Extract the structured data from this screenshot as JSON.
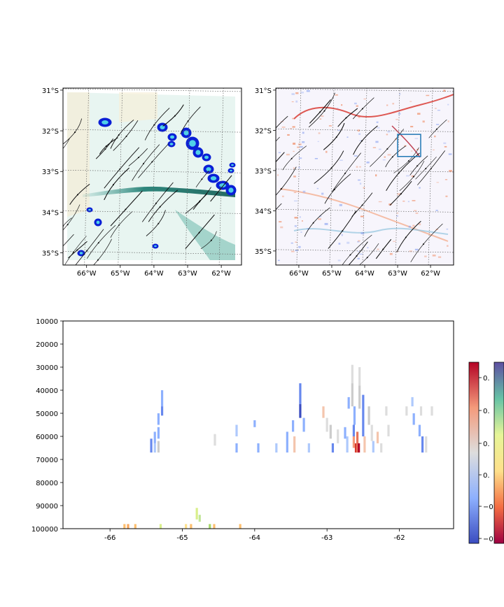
{
  "chart_data": [
    {
      "type": "map",
      "panel": "top-left",
      "lat_ticks": [
        "31°S",
        "32°S",
        "33°S",
        "34°S",
        "35°S"
      ],
      "lat_values": [
        -31,
        -32,
        -33,
        -34,
        -35
      ],
      "lon_ticks": [
        "66°W",
        "65°W",
        "64°W",
        "63°W",
        "62°W"
      ],
      "lon_values": [
        -66,
        -65,
        -64,
        -63,
        -62
      ],
      "xlim": [
        -66.7,
        -61.4
      ],
      "ylim": [
        -35.3,
        -30.95
      ],
      "features": [
        "streamlines",
        "shaded field (teal)",
        "contour blobs (blue)"
      ],
      "grid": true
    },
    {
      "type": "map",
      "panel": "top-right",
      "lat_ticks": [
        "31°S",
        "32°S",
        "33°S",
        "34°S",
        "35°S"
      ],
      "lat_values": [
        -31,
        -32,
        -33,
        -34,
        -35
      ],
      "lon_ticks": [
        "66°W",
        "65°W",
        "64°W",
        "63°W",
        "62°W"
      ],
      "lon_values": [
        -66,
        -65,
        -64,
        -63,
        -62
      ],
      "xlim": [
        -66.7,
        -61.3
      ],
      "ylim": [
        -35.35,
        -30.95
      ],
      "features": [
        "streamlines",
        "diverging field (red/blue)"
      ],
      "highlight_box": {
        "lon": [
          -63.0,
          -62.3
        ],
        "lat": [
          -32.65,
          -32.1
        ],
        "color": "#1f77b4"
      },
      "grid": true
    },
    {
      "type": "heatmap",
      "panel": "bottom",
      "x_ticks": [
        "-66",
        "-65",
        "-64",
        "-63",
        "-62"
      ],
      "x_values": [
        -66,
        -65,
        -64,
        -63,
        -62
      ],
      "y_ticks": [
        "10000",
        "20000",
        "30000",
        "40000",
        "50000",
        "60000",
        "70000",
        "80000",
        "90000",
        "100000"
      ],
      "y_values": [
        10000,
        20000,
        30000,
        40000,
        50000,
        60000,
        70000,
        80000,
        90000,
        100000
      ],
      "xlim": [
        -66.65,
        -61.25
      ],
      "ylim": [
        100000,
        10000
      ],
      "y_inverted": true,
      "colorbars": [
        {
          "name": "diverging",
          "colors": [
            "#3b4cc0",
            "#8db0fe",
            "#dddddd",
            "#f49a7b",
            "#b40426"
          ],
          "tick_labels": [
            "0.",
            "0.",
            "0.",
            "0.",
            "−0",
            "−0"
          ]
        },
        {
          "name": "spectral",
          "colors": [
            "#9e0142",
            "#f46d43",
            "#fee08b",
            "#e6f598",
            "#66c2a5",
            "#5e4fa2"
          ],
          "tick_labels": []
        }
      ],
      "cells": [
        {
          "x": -65.28,
          "ytop": 40000,
          "ybot": 47000,
          "c": "#8db0fe"
        },
        {
          "x": -65.28,
          "ytop": 47000,
          "ybot": 51000,
          "c": "#6788ee"
        },
        {
          "x": -65.33,
          "ytop": 50000,
          "ybot": 55000,
          "c": "#8db0fe"
        },
        {
          "x": -65.33,
          "ytop": 56000,
          "ybot": 61000,
          "c": "#8db0fe"
        },
        {
          "x": -65.43,
          "ytop": 61000,
          "ybot": 67000,
          "c": "#6788ee"
        },
        {
          "x": -65.38,
          "ytop": 58000,
          "ybot": 63000,
          "c": "#8db0fe"
        },
        {
          "x": -65.38,
          "ytop": 63000,
          "ybot": 67000,
          "c": "#aec9fc"
        },
        {
          "x": -65.33,
          "ytop": 62000,
          "ybot": 67000,
          "c": "#cccccc"
        },
        {
          "x": -64.55,
          "ytop": 59000,
          "ybot": 64000,
          "c": "#dddddd"
        },
        {
          "x": -64.25,
          "ytop": 55000,
          "ybot": 60000,
          "c": "#aec9fc"
        },
        {
          "x": -64.0,
          "ytop": 53000,
          "ybot": 56000,
          "c": "#8db0fe"
        },
        {
          "x": -64.25,
          "ytop": 63000,
          "ybot": 67000,
          "c": "#8db0fe"
        },
        {
          "x": -63.95,
          "ytop": 63000,
          "ybot": 67000,
          "c": "#8db0fe"
        },
        {
          "x": -63.7,
          "ytop": 63000,
          "ybot": 67000,
          "c": "#aec9fc"
        },
        {
          "x": -63.55,
          "ytop": 58000,
          "ybot": 67000,
          "c": "#8db0fe"
        },
        {
          "x": -63.45,
          "ytop": 60000,
          "ybot": 67000,
          "c": "#f4c5ad"
        },
        {
          "x": -63.47,
          "ytop": 53000,
          "ybot": 58000,
          "c": "#8db0fe"
        },
        {
          "x": -63.37,
          "ytop": 37000,
          "ybot": 46000,
          "c": "#6788ee"
        },
        {
          "x": -63.37,
          "ytop": 46000,
          "ybot": 52000,
          "c": "#3b4cc0"
        },
        {
          "x": -63.32,
          "ytop": 52000,
          "ybot": 58000,
          "c": "#8db0fe"
        },
        {
          "x": -63.25,
          "ytop": 63000,
          "ybot": 67000,
          "c": "#aec9fc"
        },
        {
          "x": -63.05,
          "ytop": 47000,
          "ybot": 52000,
          "c": "#f4c5ad"
        },
        {
          "x": -63.0,
          "ytop": 52000,
          "ybot": 58000,
          "c": "#dddddd"
        },
        {
          "x": -62.95,
          "ytop": 55000,
          "ybot": 61000,
          "c": "#cccccc"
        },
        {
          "x": -62.85,
          "ytop": 57000,
          "ybot": 63000,
          "c": "#dddddd"
        },
        {
          "x": -62.92,
          "ytop": 63000,
          "ybot": 67000,
          "c": "#6788ee"
        },
        {
          "x": -62.75,
          "ytop": 56000,
          "ybot": 61000,
          "c": "#8db0fe"
        },
        {
          "x": -62.7,
          "ytop": 43000,
          "ybot": 48000,
          "c": "#8db0fe"
        },
        {
          "x": -62.72,
          "ytop": 60000,
          "ybot": 67000,
          "c": "#aec9fc"
        },
        {
          "x": -62.65,
          "ytop": 29000,
          "ybot": 37000,
          "c": "#dddddd"
        },
        {
          "x": -62.65,
          "ytop": 37000,
          "ybot": 47000,
          "c": "#cccccc"
        },
        {
          "x": -62.62,
          "ytop": 47000,
          "ybot": 55000,
          "c": "#8db0fe"
        },
        {
          "x": -62.63,
          "ytop": 55000,
          "ybot": 60000,
          "c": "#6788ee"
        },
        {
          "x": -62.63,
          "ytop": 60000,
          "ybot": 65000,
          "c": "#f49a7b"
        },
        {
          "x": -62.6,
          "ytop": 63000,
          "ybot": 67000,
          "c": "#d6352a"
        },
        {
          "x": -62.58,
          "ytop": 58000,
          "ybot": 67000,
          "c": "#e7745b"
        },
        {
          "x": -62.56,
          "ytop": 63000,
          "ybot": 67000,
          "c": "#b40426"
        },
        {
          "x": -62.55,
          "ytop": 30000,
          "ybot": 38000,
          "c": "#dddddd"
        },
        {
          "x": -62.55,
          "ytop": 38000,
          "ybot": 48000,
          "c": "#cccccc"
        },
        {
          "x": -62.5,
          "ytop": 42000,
          "ybot": 60000,
          "c": "#6788ee"
        },
        {
          "x": -62.48,
          "ytop": 60000,
          "ybot": 67000,
          "c": "#f4c5ad"
        },
        {
          "x": -62.42,
          "ytop": 47000,
          "ybot": 55000,
          "c": "#cccccc"
        },
        {
          "x": -62.38,
          "ytop": 55000,
          "ybot": 62000,
          "c": "#dddddd"
        },
        {
          "x": -62.36,
          "ytop": 62000,
          "ybot": 67000,
          "c": "#aec9fc"
        },
        {
          "x": -62.3,
          "ytop": 58000,
          "ybot": 63000,
          "c": "#f4c5ad"
        },
        {
          "x": -62.25,
          "ytop": 63000,
          "ybot": 67000,
          "c": "#dddddd"
        },
        {
          "x": -62.18,
          "ytop": 47000,
          "ybot": 51000,
          "c": "#dddddd"
        },
        {
          "x": -62.15,
          "ytop": 55000,
          "ybot": 60000,
          "c": "#dddddd"
        },
        {
          "x": -61.9,
          "ytop": 47000,
          "ybot": 51000,
          "c": "#dddddd"
        },
        {
          "x": -61.82,
          "ytop": 43000,
          "ybot": 47000,
          "c": "#aec9fc"
        },
        {
          "x": -61.8,
          "ytop": 50000,
          "ybot": 55000,
          "c": "#8db0fe"
        },
        {
          "x": -61.72,
          "ytop": 55000,
          "ybot": 60000,
          "c": "#8db0fe"
        },
        {
          "x": -61.7,
          "ytop": 47000,
          "ybot": 51000,
          "c": "#dddddd"
        },
        {
          "x": -61.68,
          "ytop": 60000,
          "ybot": 67000,
          "c": "#6788ee"
        },
        {
          "x": -61.63,
          "ytop": 60000,
          "ybot": 67000,
          "c": "#dddddd"
        },
        {
          "x": -61.55,
          "ytop": 47000,
          "ybot": 51000,
          "c": "#dddddd"
        },
        {
          "x": -65.8,
          "ytop": 98000,
          "ybot": 100000,
          "c": "#fdbf6f"
        },
        {
          "x": -65.75,
          "ytop": 98000,
          "ybot": 100000,
          "c": "#f9a85d"
        },
        {
          "x": -65.65,
          "ytop": 98000,
          "ybot": 100000,
          "c": "#fdbf6f"
        },
        {
          "x": -65.3,
          "ytop": 98000,
          "ybot": 100000,
          "c": "#d9ef8b"
        },
        {
          "x": -64.95,
          "ytop": 98000,
          "ybot": 100000,
          "c": "#fee08b"
        },
        {
          "x": -64.88,
          "ytop": 98000,
          "ybot": 100000,
          "c": "#fdbf6f"
        },
        {
          "x": -64.8,
          "ytop": 91000,
          "ybot": 96000,
          "c": "#d9ef8b"
        },
        {
          "x": -64.76,
          "ytop": 94000,
          "ybot": 97000,
          "c": "#c2e699"
        },
        {
          "x": -64.62,
          "ytop": 98000,
          "ybot": 100000,
          "c": "#a6d96a"
        },
        {
          "x": -64.56,
          "ytop": 98000,
          "ybot": 100000,
          "c": "#fdbf6f"
        },
        {
          "x": -64.2,
          "ytop": 98000,
          "ybot": 100000,
          "c": "#fdbf6f"
        }
      ]
    }
  ]
}
